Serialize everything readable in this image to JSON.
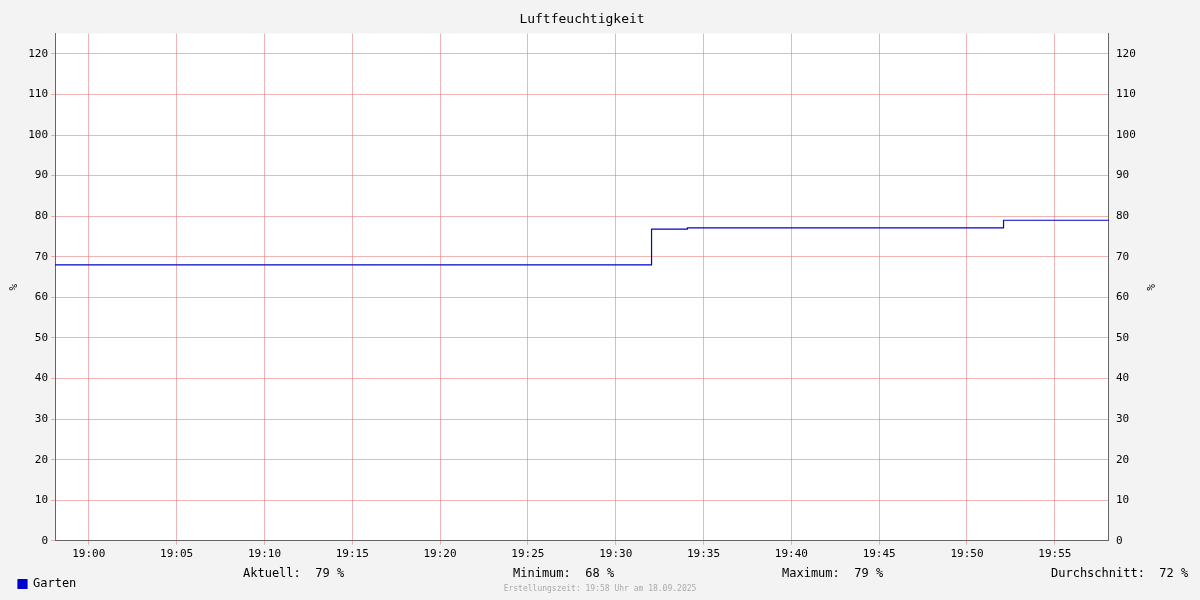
{
  "chart_data": {
    "type": "step",
    "title": "Luftfeuchtigkeit",
    "ylabel": "%",
    "y2label": "%",
    "x": [
      18.968,
      19.534,
      19.568,
      19.868,
      19.968
    ],
    "series": [
      {
        "name": "Garten",
        "color": "#0000cc",
        "values": [
          68,
          76.8,
          77.1,
          79,
          79
        ]
      }
    ],
    "xlim": [
      18.968,
      19.968
    ],
    "xticks": [
      {
        "value": 19,
        "label": "19:00"
      },
      {
        "value": 19.0833,
        "label": "19:05"
      },
      {
        "value": 19.1667,
        "label": "19:10"
      },
      {
        "value": 19.25,
        "label": "19:15"
      },
      {
        "value": 19.3333,
        "label": "19:20"
      },
      {
        "value": 19.4167,
        "label": "19:25"
      },
      {
        "value": 19.5,
        "label": "19:30"
      },
      {
        "value": 19.5833,
        "label": "19:35"
      },
      {
        "value": 19.6667,
        "label": "19:40"
      },
      {
        "value": 19.75,
        "label": "19:45"
      },
      {
        "value": 19.8333,
        "label": "19:50"
      },
      {
        "value": 19.9167,
        "label": "19:55"
      }
    ],
    "ylim": [
      0,
      125
    ],
    "yticks": [
      0,
      10,
      20,
      30,
      40,
      50,
      60,
      70,
      80,
      90,
      100,
      110,
      120
    ],
    "y2lim": [
      0,
      125
    ],
    "y2ticks": [
      0,
      10,
      20,
      30,
      40,
      50,
      60,
      70,
      80,
      90,
      100,
      110,
      120
    ],
    "grid": true,
    "legend": "bottom left",
    "marker": "none",
    "line_style": "solid",
    "annotations": [
      "Aktuell:  79 %",
      "Minimum:  68 %",
      "Maximum:  79 %",
      "Durchschnitt:  72 %",
      "Erstellungszeit: 19:58 Uhr am 18.09.2025"
    ]
  }
}
